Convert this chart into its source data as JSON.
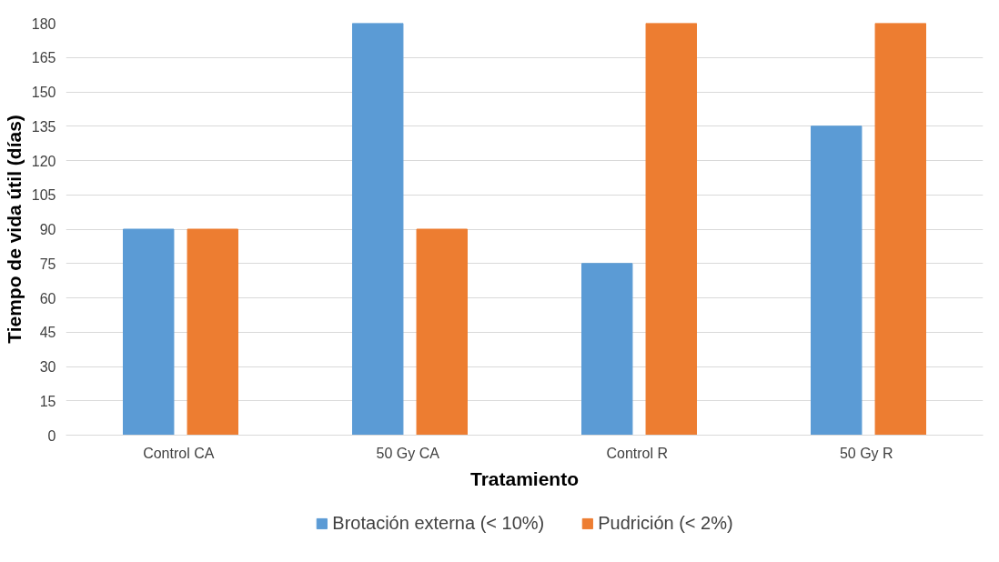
{
  "chart_data": {
    "type": "bar",
    "xlabel": "Tratamiento",
    "ylabel": "Tiempo de vida útil (días)",
    "categories": [
      "Control  CA",
      "50 Gy  CA",
      "Control  R",
      "50 Gy  R"
    ],
    "series": [
      {
        "name": "Brotación externa (< 10%)",
        "color": "#5b9bd5",
        "values": [
          90,
          180,
          75,
          135
        ]
      },
      {
        "name": "Pudrición (< 2%)",
        "color": "#ed7d31",
        "values": [
          90,
          90,
          180,
          180
        ]
      }
    ],
    "ylim": [
      0,
      180
    ],
    "yticks": [
      0,
      15,
      30,
      45,
      60,
      75,
      90,
      105,
      120,
      135,
      150,
      165,
      180
    ],
    "grid": "y",
    "legend": "bottom"
  }
}
